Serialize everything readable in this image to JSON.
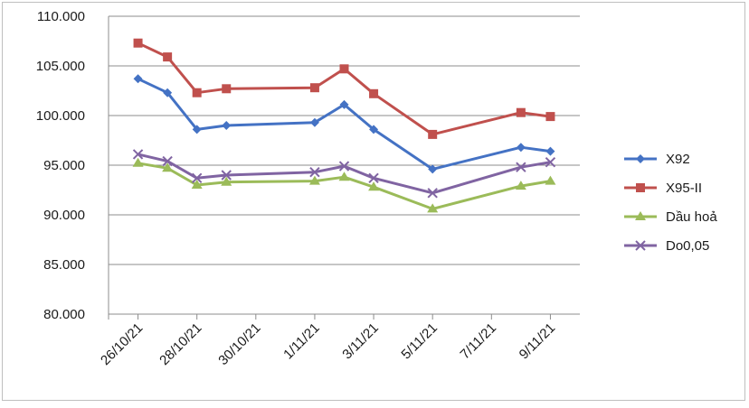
{
  "chart_data": {
    "type": "line",
    "title": "",
    "xlabel": "",
    "ylabel": "",
    "ylim": [
      80000,
      110000
    ],
    "y_ticks": [
      "80.000",
      "85.000",
      "90.000",
      "95.000",
      "100.000",
      "105.000",
      "110.000"
    ],
    "x_tick_labels": [
      "26/10/21",
      "28/10/21",
      "30/10/21",
      "1/11/21",
      "3/11/21",
      "5/11/21",
      "7/11/21",
      "9/11/21"
    ],
    "x_range": [
      "2021-10-25",
      "2021-11-10"
    ],
    "grid": "horizontal",
    "legend_position": "right",
    "series": [
      {
        "name": "X92",
        "color": "#4472c4",
        "marker": "diamond",
        "x": [
          "2021-10-26",
          "2021-10-27",
          "2021-10-28",
          "2021-10-29",
          "2021-11-01",
          "2021-11-02",
          "2021-11-03",
          "2021-11-05",
          "2021-11-08",
          "2021-11-09"
        ],
        "values": [
          103700,
          102300,
          98600,
          99000,
          99300,
          101100,
          98600,
          94600,
          96800,
          96400
        ]
      },
      {
        "name": "X95-II",
        "color": "#c0504d",
        "marker": "square",
        "x": [
          "2021-10-26",
          "2021-10-27",
          "2021-10-28",
          "2021-10-29",
          "2021-11-01",
          "2021-11-02",
          "2021-11-03",
          "2021-11-05",
          "2021-11-08",
          "2021-11-09"
        ],
        "values": [
          107300,
          105900,
          102300,
          102700,
          102800,
          104700,
          102200,
          98100,
          100300,
          99900
        ]
      },
      {
        "name": "Dầu hoả",
        "color": "#9bbb59",
        "marker": "triangle",
        "x": [
          "2021-10-26",
          "2021-10-27",
          "2021-10-28",
          "2021-10-29",
          "2021-11-01",
          "2021-11-02",
          "2021-11-03",
          "2021-11-05",
          "2021-11-08",
          "2021-11-09"
        ],
        "values": [
          95200,
          94700,
          93000,
          93300,
          93400,
          93800,
          92800,
          90600,
          92900,
          93400
        ]
      },
      {
        "name": "Do0,05",
        "color": "#8064a2",
        "marker": "x",
        "x": [
          "2021-10-26",
          "2021-10-27",
          "2021-10-28",
          "2021-10-29",
          "2021-11-01",
          "2021-11-02",
          "2021-11-03",
          "2021-11-05",
          "2021-11-08",
          "2021-11-09"
        ],
        "values": [
          96100,
          95400,
          93700,
          94000,
          94300,
          94900,
          93700,
          92200,
          94800,
          95300
        ]
      }
    ]
  }
}
